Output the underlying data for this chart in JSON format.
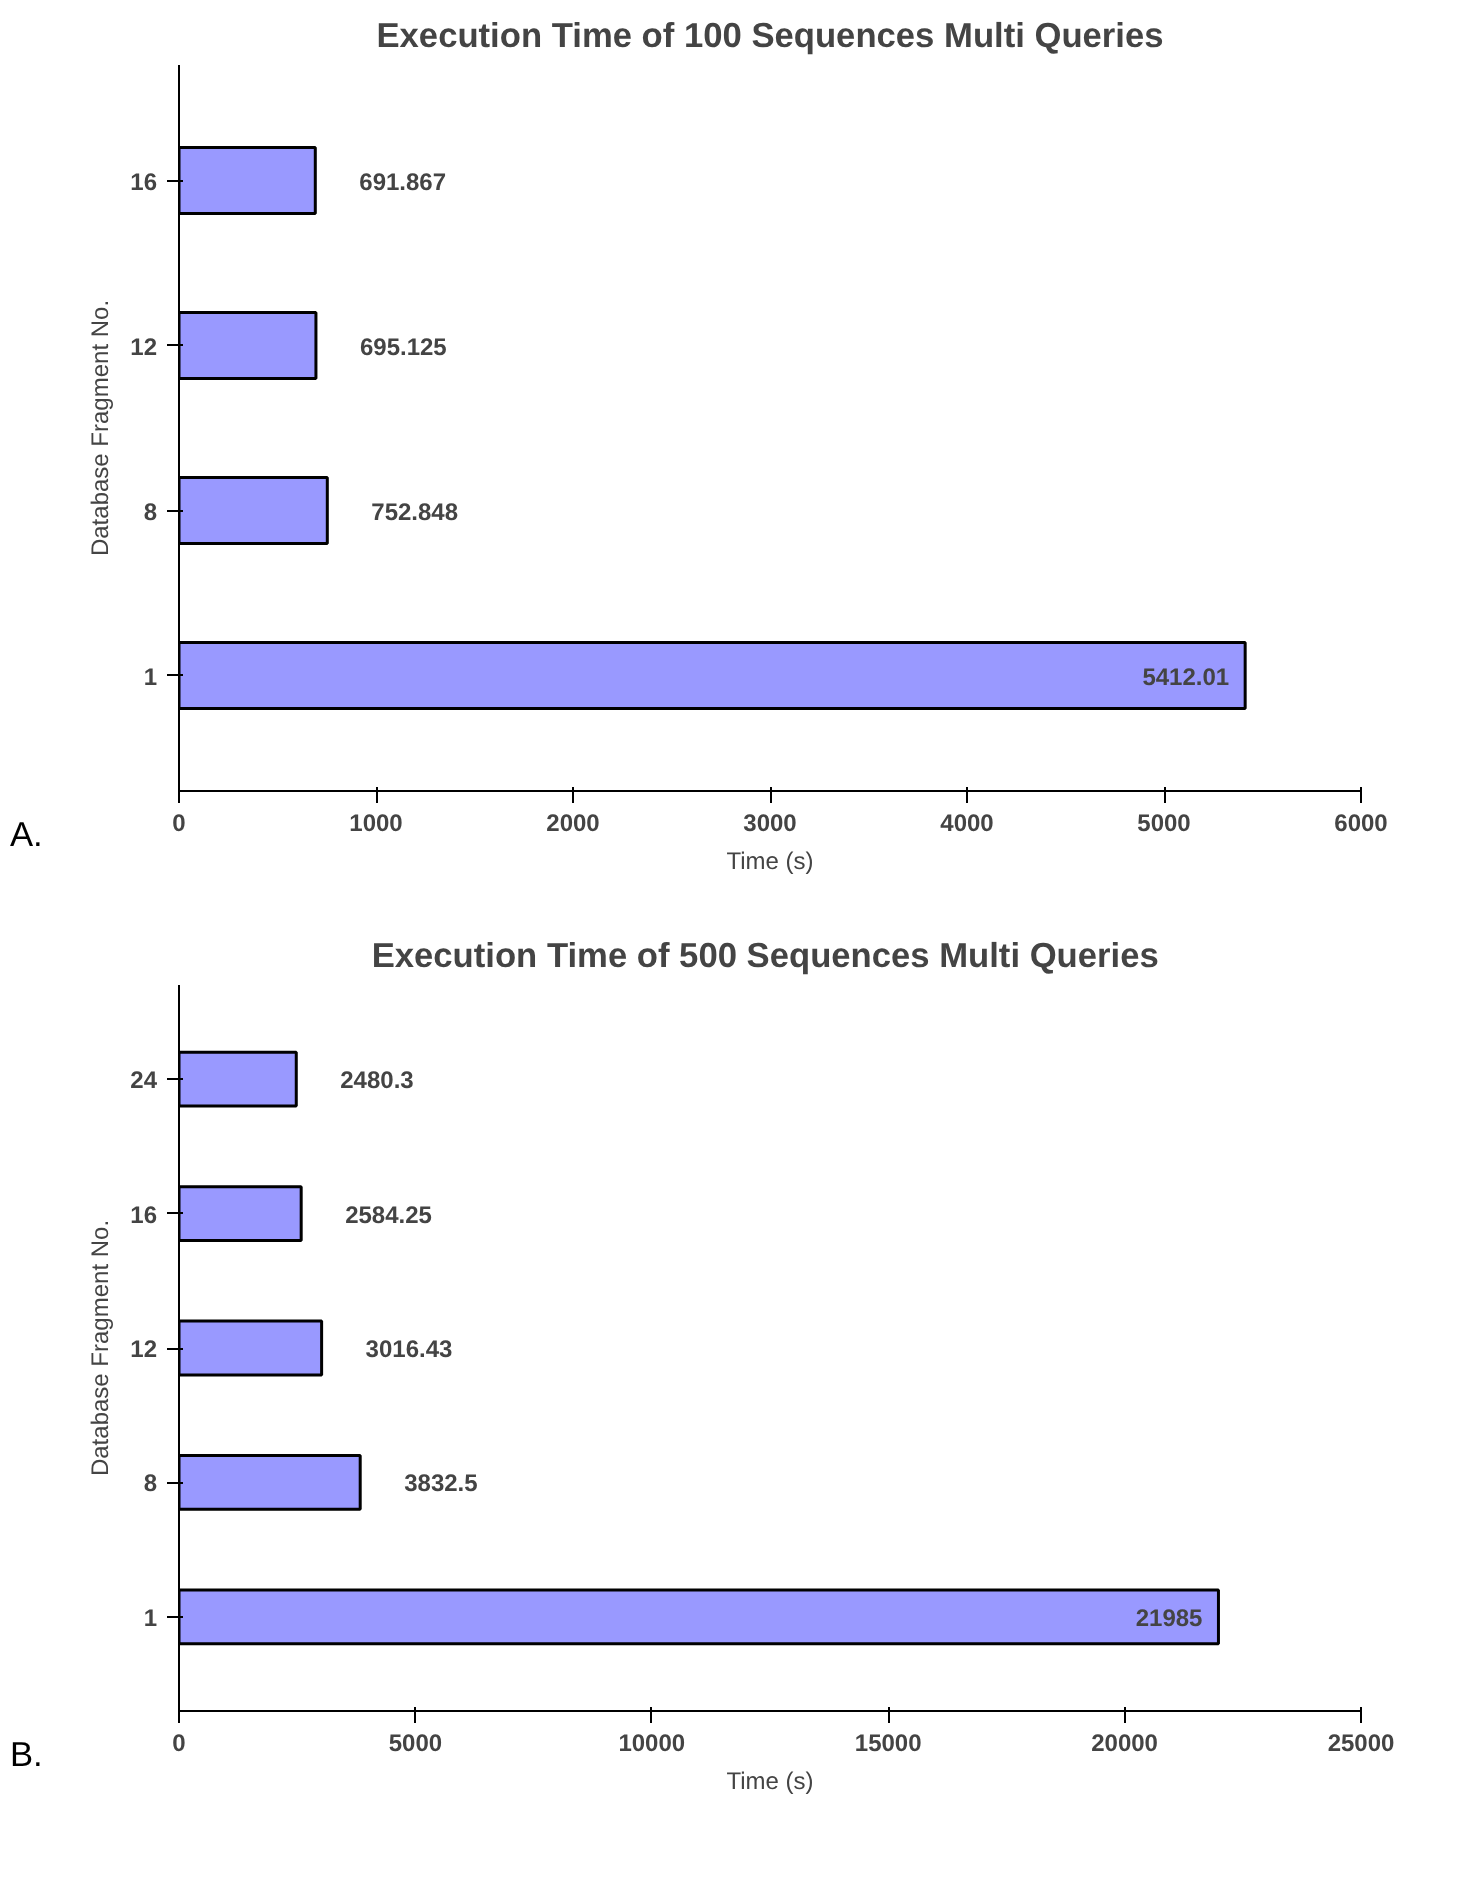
{
  "chart_data": [
    {
      "type": "bar",
      "orientation": "horizontal",
      "title": "Execution Time of 100 Sequences Multi Queries",
      "xlabel": "Time (s)",
      "ylabel": "Database Fragment No.",
      "categories": [
        "16",
        "12",
        "8",
        "1"
      ],
      "values": [
        691.867,
        695.125,
        752.848,
        5412.01
      ],
      "color": "#9999ff",
      "xlim": [
        0,
        6000
      ],
      "xticks": [
        0,
        1000,
        2000,
        3000,
        4000,
        5000,
        6000
      ],
      "data_labels": true,
      "grid": false,
      "annotations": [
        "A."
      ]
    },
    {
      "type": "bar",
      "orientation": "horizontal",
      "title": "Execution Time of  500 Sequences Multi Queries",
      "xlabel": "Time (s)",
      "ylabel": "Database Fragment No.",
      "categories": [
        "24",
        "16",
        "12",
        "8",
        "1"
      ],
      "values": [
        2480.3,
        2584.25,
        3016.43,
        3832.5,
        21985
      ],
      "color": "#9999ff",
      "xlim": [
        0,
        25000
      ],
      "xticks": [
        0,
        5000,
        10000,
        15000,
        20000,
        25000
      ],
      "data_labels": true,
      "grid": false,
      "annotations": [
        "B."
      ]
    }
  ]
}
